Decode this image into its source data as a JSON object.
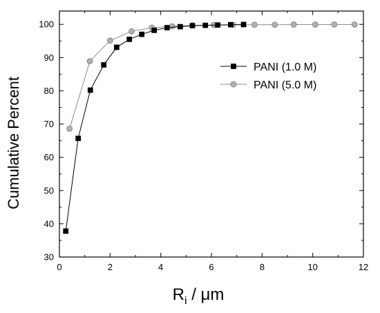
{
  "chart_data": {
    "type": "line",
    "title": "",
    "xlabel": "R",
    "xlabel_sub": "i",
    "xlabel_unit": " / μm",
    "ylabel": "Cumulative Percent",
    "xlim": [
      0,
      12
    ],
    "ylim": [
      30,
      104
    ],
    "xticks": [
      0,
      2,
      4,
      6,
      8,
      10,
      12
    ],
    "yticks": [
      30,
      40,
      50,
      60,
      70,
      80,
      90,
      100
    ],
    "grid": false,
    "legend_position": "upper-right",
    "series": [
      {
        "name": "PANI (1.0 M)",
        "marker": "square",
        "color": "#000000",
        "x": [
          0.25,
          0.74,
          1.22,
          1.75,
          2.26,
          2.76,
          3.25,
          3.74,
          4.25,
          4.77,
          5.25,
          5.76,
          6.25,
          6.76,
          7.27
        ],
        "y": [
          37.8,
          65.7,
          80.2,
          87.8,
          93.1,
          95.5,
          97.0,
          98.2,
          99.0,
          99.3,
          99.6,
          99.7,
          99.8,
          99.9,
          99.95
        ]
      },
      {
        "name": "PANI (5.0 M)",
        "marker": "circle",
        "color": "#a6a6a6",
        "x": [
          0.4,
          1.2,
          2.0,
          2.85,
          3.65,
          4.45,
          5.25,
          6.1,
          6.85,
          7.7,
          8.5,
          9.25,
          10.1,
          10.85,
          11.65
        ],
        "y": [
          68.6,
          88.9,
          95.1,
          97.9,
          99.0,
          99.4,
          99.7,
          99.8,
          99.85,
          99.9,
          99.9,
          99.95,
          99.95,
          99.95,
          99.95
        ]
      }
    ]
  }
}
